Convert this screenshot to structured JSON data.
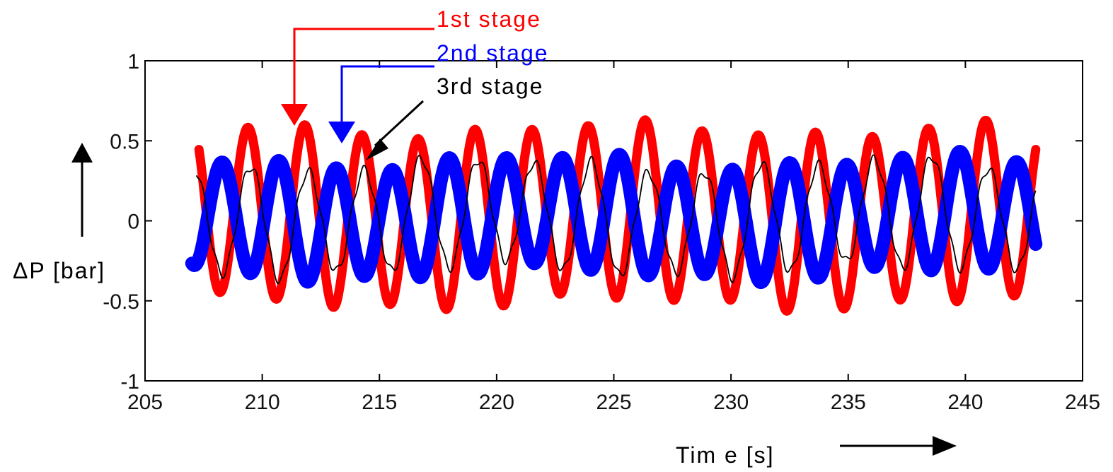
{
  "chart_data": {
    "type": "line",
    "xlabel": "Tim e [s]",
    "ylabel": "ΔP [bar]",
    "xlim": [
      205,
      245
    ],
    "ylim": [
      -1,
      1
    ],
    "xticks": [
      205,
      210,
      215,
      220,
      225,
      230,
      235,
      240,
      245
    ],
    "yticks": [
      1,
      0.5,
      0,
      -0.5,
      -1
    ],
    "xtick_labels": [
      "205",
      "210",
      "215",
      "220",
      "225",
      "230",
      "235",
      "240",
      "245"
    ],
    "ytick_labels": [
      "1",
      "0.5",
      "0",
      "-0.5",
      "-1"
    ],
    "grid": false,
    "legend_placement": "top-center, labels with arrows pointing into the data",
    "series": [
      {
        "name": "1st stage",
        "color": "#ff0000",
        "marker": "dense asterisk markers",
        "x_range": [
          207.3,
          243.0
        ],
        "period_s": 2.42,
        "amplitude": 0.54,
        "offset": 0.03,
        "first_peak_s": 209.4
      },
      {
        "name": "2nd stage",
        "color": "#0000ff",
        "marker": "dense asterisk markers",
        "x_range": [
          207.0,
          243.0
        ],
        "period_s": 2.42,
        "amplitude": 0.35,
        "offset": 0.02,
        "first_peak_s": 208.3
      },
      {
        "name": "3rd stage",
        "color": "#000000",
        "marker": "thin line",
        "x_range": [
          207.2,
          243.0
        ],
        "period_s": 2.42,
        "amplitude": 0.33,
        "offset": 0.02,
        "first_peak_s": 207.1
      }
    ]
  }
}
